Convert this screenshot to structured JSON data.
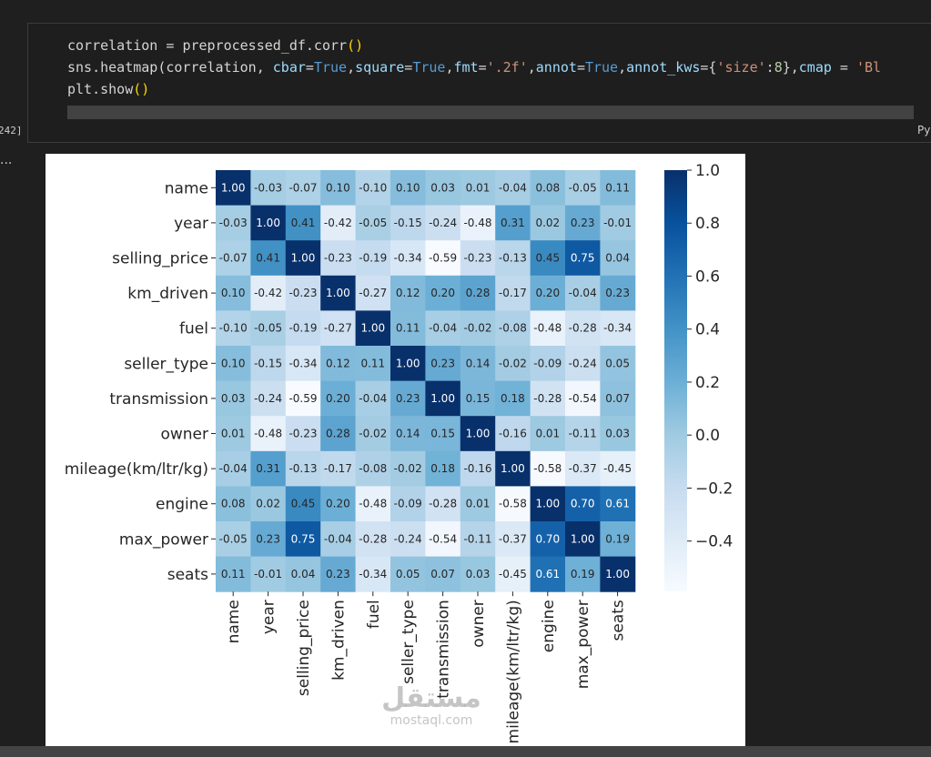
{
  "cell": {
    "exec_count": "242]",
    "language": "Py",
    "output_prompt": "...",
    "code_lines": [
      [
        [
          "tk-var",
          "correlation "
        ],
        [
          "tk-op",
          "= "
        ],
        [
          "tk-var",
          "preprocessed_df.corr"
        ],
        [
          "tk-paren",
          "()"
        ]
      ],
      [
        [
          "tk-var",
          "sns.heatmap(correlation, "
        ],
        [
          "tk-kw",
          "cbar"
        ],
        [
          "tk-op",
          "="
        ],
        [
          "tk-bool",
          "True"
        ],
        [
          "tk-op",
          ","
        ],
        [
          "tk-kw",
          "square"
        ],
        [
          "tk-op",
          "="
        ],
        [
          "tk-bool",
          "True"
        ],
        [
          "tk-op",
          ","
        ],
        [
          "tk-kw",
          "fmt"
        ],
        [
          "tk-op",
          "="
        ],
        [
          "tk-str",
          "'.2f'"
        ],
        [
          "tk-op",
          ","
        ],
        [
          "tk-kw",
          "annot"
        ],
        [
          "tk-op",
          "="
        ],
        [
          "tk-bool",
          "True"
        ],
        [
          "tk-op",
          ","
        ],
        [
          "tk-kw",
          "annot_kws"
        ],
        [
          "tk-op",
          "={"
        ],
        [
          "tk-str",
          "'size'"
        ],
        [
          "tk-op",
          ":"
        ],
        [
          "tk-num",
          "8"
        ],
        [
          "tk-op",
          "},"
        ],
        [
          "tk-kw",
          "cmap"
        ],
        [
          "tk-op",
          " = "
        ],
        [
          "tk-str",
          "'Bl"
        ]
      ],
      [
        [
          "tk-var",
          "plt.show"
        ],
        [
          "tk-paren",
          "()"
        ]
      ]
    ]
  },
  "watermark": {
    "arabic": "مستقل",
    "latin": "mostaql.com"
  },
  "colors": {
    "cmap": [
      "#f7fbff",
      "#deebf7",
      "#c6dbef",
      "#9ecae1",
      "#6baed6",
      "#4292c6",
      "#2171b5",
      "#08519c",
      "#08306b"
    ],
    "background": "#1f1f1f",
    "plot_bg": "#ffffff"
  },
  "chart_data": {
    "type": "heatmap",
    "title": "",
    "labels": [
      "name",
      "year",
      "selling_price",
      "km_driven",
      "fuel",
      "seller_type",
      "transmission",
      "owner",
      "mileage(km/ltr/kg)",
      "engine",
      "max_power",
      "seats"
    ],
    "values": [
      [
        1.0,
        -0.03,
        -0.07,
        0.1,
        -0.1,
        0.1,
        0.03,
        0.01,
        -0.04,
        0.08,
        -0.05,
        0.11
      ],
      [
        -0.03,
        1.0,
        0.41,
        -0.42,
        -0.05,
        -0.15,
        -0.24,
        -0.48,
        0.31,
        0.02,
        0.23,
        -0.01
      ],
      [
        -0.07,
        0.41,
        1.0,
        -0.23,
        -0.19,
        -0.34,
        -0.59,
        -0.23,
        -0.13,
        0.45,
        0.75,
        0.04
      ],
      [
        0.1,
        -0.42,
        -0.23,
        1.0,
        -0.27,
        0.12,
        0.2,
        0.28,
        -0.17,
        0.2,
        -0.04,
        0.23
      ],
      [
        -0.1,
        -0.05,
        -0.19,
        -0.27,
        1.0,
        0.11,
        -0.04,
        -0.02,
        -0.08,
        -0.48,
        -0.28,
        -0.34
      ],
      [
        0.1,
        -0.15,
        -0.34,
        0.12,
        0.11,
        1.0,
        0.23,
        0.14,
        -0.02,
        -0.09,
        -0.24,
        0.05
      ],
      [
        0.03,
        -0.24,
        -0.59,
        0.2,
        -0.04,
        0.23,
        1.0,
        0.15,
        0.18,
        -0.28,
        -0.54,
        0.07
      ],
      [
        0.01,
        -0.48,
        -0.23,
        0.28,
        -0.02,
        0.14,
        0.15,
        1.0,
        -0.16,
        0.01,
        -0.11,
        0.03
      ],
      [
        -0.04,
        0.31,
        -0.13,
        -0.17,
        -0.08,
        -0.02,
        0.18,
        -0.16,
        1.0,
        -0.58,
        -0.37,
        -0.45
      ],
      [
        0.08,
        0.02,
        0.45,
        0.2,
        -0.48,
        -0.09,
        -0.28,
        0.01,
        -0.58,
        1.0,
        0.7,
        0.61
      ],
      [
        -0.05,
        0.23,
        0.75,
        -0.04,
        -0.28,
        -0.24,
        -0.54,
        -0.11,
        -0.37,
        0.7,
        1.0,
        0.19
      ],
      [
        0.11,
        -0.01,
        0.04,
        0.23,
        -0.34,
        0.05,
        0.07,
        0.03,
        -0.45,
        0.61,
        0.19,
        1.0
      ]
    ],
    "vmin": -0.59,
    "vmax": 1.0,
    "colorbar": {
      "ticks": [
        1.0,
        0.8,
        0.6,
        0.4,
        0.2,
        0.0,
        -0.2,
        -0.4
      ],
      "tick_labels": [
        "1.0",
        "0.8",
        "0.6",
        "0.4",
        "0.2",
        "0.0",
        "−0.2",
        "−0.4"
      ]
    },
    "grid": false,
    "legend": "colorbar-right"
  }
}
